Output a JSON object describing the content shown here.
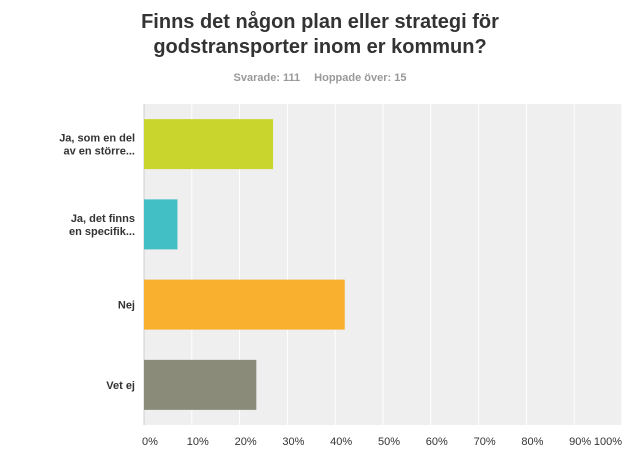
{
  "header": {
    "title_line1": "Finns det någon plan eller strategi för",
    "title_line2": "godstransporter inom er kommun?",
    "answered": "Svarade: 111",
    "skipped": "Hoppade över: 15"
  },
  "chart_data": {
    "type": "bar",
    "orientation": "horizontal",
    "title": "Finns det någon plan eller strategi för godstransporter inom er kommun?",
    "categories": [
      [
        "Ja, som en del",
        "av en större..."
      ],
      [
        "Ja, det finns",
        "en specifik..."
      ],
      [
        "Nej"
      ],
      [
        "Vet ej"
      ]
    ],
    "values": [
      27,
      7,
      42,
      23.5
    ],
    "colors": [
      "#c9d52c",
      "#42bfc4",
      "#f8b02e",
      "#8b8b7a"
    ],
    "xlim": [
      0,
      100
    ],
    "ticks": [
      "0%",
      "10%",
      "20%",
      "30%",
      "40%",
      "50%",
      "60%",
      "70%",
      "80%",
      "90%",
      "100%"
    ],
    "grid": true,
    "background": "#efefef"
  }
}
